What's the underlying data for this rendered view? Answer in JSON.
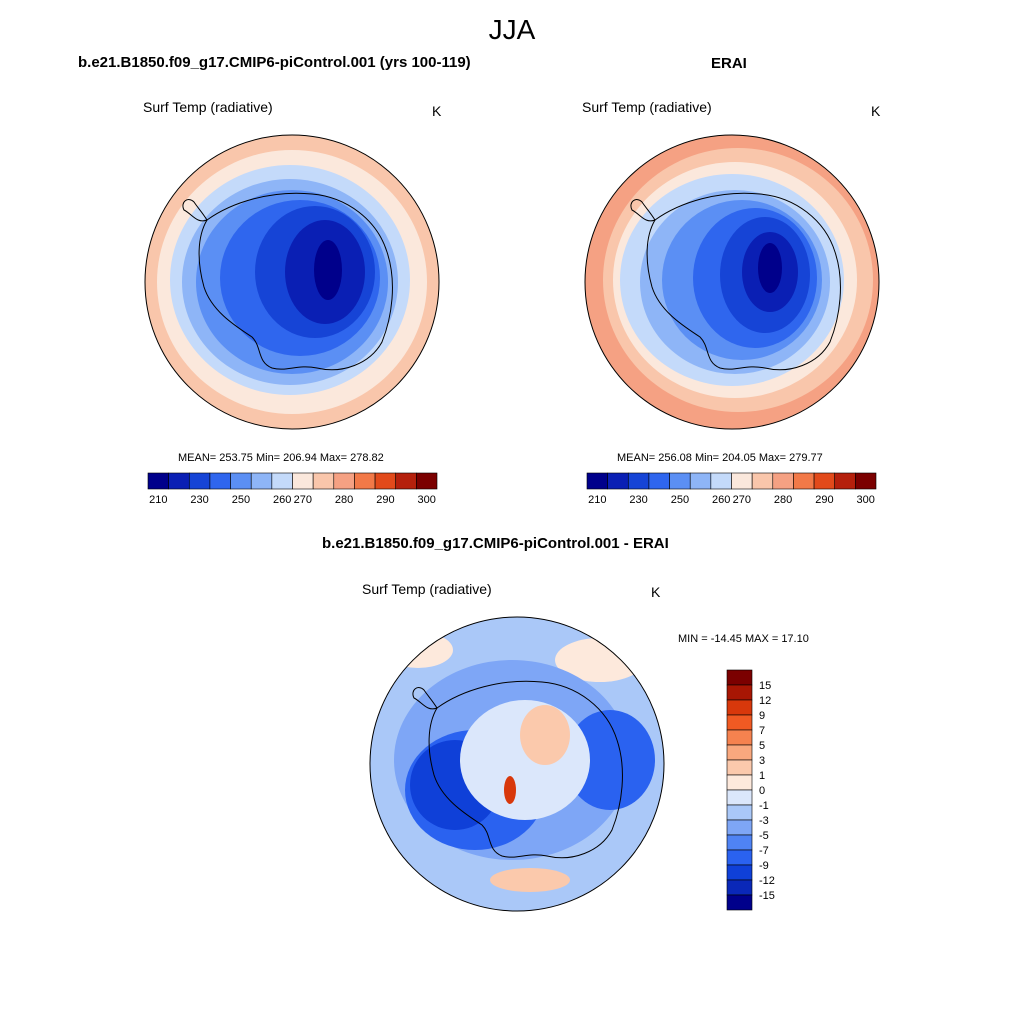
{
  "figure": {
    "title": "JJA",
    "panels": [
      {
        "id": "model",
        "title": "b.e21.B1850.f09_g17.CMIP6-piControl.001 (yrs 100-119)",
        "variable": "Surf Temp (radiative)",
        "units": "K",
        "stats": "MEAN= 253.75  Min= 206.94  Max= 278.82"
      },
      {
        "id": "obs",
        "title": "ERAI",
        "variable": "Surf Temp (radiative)",
        "units": "K",
        "stats": "MEAN= 256.08  Min= 204.05  Max= 279.77"
      },
      {
        "id": "diff",
        "title": "b.e21.B1850.f09_g17.CMIP6-piControl.001 - ERAI",
        "variable": "Surf Temp (radiative)",
        "units": "K",
        "stats": "MIN = -14.45 MAX =  17.10"
      }
    ]
  },
  "colors": {
    "abs_palette": [
      "#00008b",
      "#0a1fb4",
      "#1644d6",
      "#2f66ee",
      "#5b8ff4",
      "#8eb5f7",
      "#c4dafa",
      "#fbe8dc",
      "#f9c6ab",
      "#f5a183",
      "#f27948",
      "#e24a1b",
      "#b5200c",
      "#7b0000"
    ],
    "diff_palette": [
      "#00008b",
      "#0a28b8",
      "#0f40d8",
      "#2a62f0",
      "#4f83f4",
      "#7ea6f6",
      "#aac8f8",
      "#dbe7fb",
      "#fde9dc",
      "#fbc9ac",
      "#f9a87e",
      "#f5824f",
      "#f05a23",
      "#d8380b",
      "#a81604",
      "#7b0000"
    ]
  },
  "chart_data": [
    {
      "type": "heatmap",
      "projection": "south polar stereographic",
      "title": "b.e21.B1850.f09_g17.CMIP6-piControl.001 (yrs 100-119)",
      "variable": "Surf Temp (radiative)",
      "units": "K",
      "mean": 253.75,
      "min": 206.94,
      "max": 278.82,
      "colorbar": {
        "orientation": "horizontal",
        "tick_labels": [
          "210",
          "230",
          "250",
          "260",
          "270",
          "280",
          "290",
          "300"
        ]
      }
    },
    {
      "type": "heatmap",
      "projection": "south polar stereographic",
      "title": "ERAI",
      "variable": "Surf Temp (radiative)",
      "units": "K",
      "mean": 256.08,
      "min": 204.05,
      "max": 279.77,
      "colorbar": {
        "orientation": "horizontal",
        "tick_labels": [
          "210",
          "230",
          "250",
          "260",
          "270",
          "280",
          "290",
          "300"
        ]
      }
    },
    {
      "type": "heatmap",
      "projection": "south polar stereographic",
      "title": "b.e21.B1850.f09_g17.CMIP6-piControl.001 - ERAI",
      "variable": "Surf Temp (radiative)",
      "units": "K",
      "min": -14.45,
      "max": 17.1,
      "colorbar": {
        "orientation": "vertical",
        "tick_labels": [
          "15",
          "12",
          "9",
          "7",
          "5",
          "3",
          "1",
          "0",
          "-1",
          "-3",
          "-5",
          "-7",
          "-9",
          "-12",
          "-15"
        ]
      }
    }
  ]
}
